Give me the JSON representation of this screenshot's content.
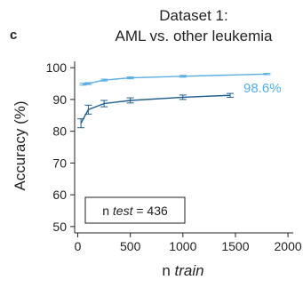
{
  "panel_label": "c",
  "chart_data": {
    "type": "line",
    "title_line1": "Dataset 1:",
    "title_line2": "AML vs. other leukemia",
    "ylabel": "Accuracy (%)",
    "xlabel_prefix": "n ",
    "xlabel_italic": "train",
    "xlim": [
      -30,
      2050
    ],
    "ylim": [
      48,
      102
    ],
    "x_ticks": [
      0,
      500,
      1000,
      1500,
      2000
    ],
    "y_ticks": [
      50,
      60,
      70,
      80,
      90,
      100
    ],
    "grid": false,
    "series": [
      {
        "color": "#5aaee0",
        "x": [
          50,
          100,
          250,
          500,
          1000,
          1800
        ],
        "y": [
          94.8,
          95.0,
          96.1,
          96.8,
          97.3,
          98.0
        ],
        "err": [
          0.3,
          0.3,
          0.3,
          0.3,
          0.3,
          0.2
        ]
      },
      {
        "color": "#1f5d8c",
        "x": [
          30,
          100,
          250,
          500,
          1000,
          1450
        ],
        "y": [
          82.5,
          86.8,
          88.7,
          89.7,
          90.7,
          91.3
        ],
        "err": [
          1.4,
          1.4,
          1.0,
          0.8,
          0.7,
          0.6
        ]
      }
    ],
    "annotation": "98.6%",
    "annotation_color": "#5aaee0",
    "box_prefix": "n ",
    "box_italic": "test",
    "box_suffix": " = 436"
  }
}
